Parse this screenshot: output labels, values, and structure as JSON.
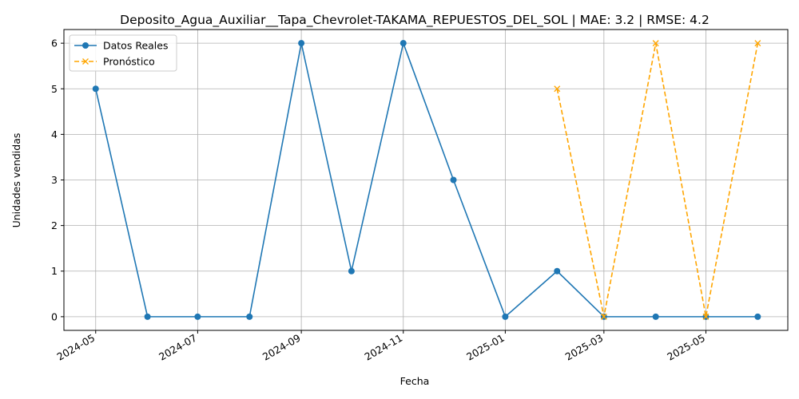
{
  "chart_data": {
    "type": "line",
    "title": "Deposito_Agua_Auxiliar__Tapa_Chevrolet-TAKAMA_REPUESTOS_DEL_SOL | MAE: 3.2 | RMSE: 4.2",
    "xlabel": "Fecha",
    "ylabel": "Unidades vendidas",
    "x_tick_labels": [
      "2024-05",
      "2024-07",
      "2024-09",
      "2024-11",
      "2025-01",
      "2025-03",
      "2025-05"
    ],
    "y_ticks": [
      0,
      1,
      2,
      3,
      4,
      5,
      6
    ],
    "ylim": [
      -0.3,
      6.3
    ],
    "xlim": [
      "2024-04-12",
      "2025-06-19"
    ],
    "grid": true,
    "legend_position": "top-left",
    "series": [
      {
        "name": "Datos Reales",
        "color": "#1f77b4",
        "marker": "circle",
        "linestyle": "solid",
        "x": [
          "2024-05-01",
          "2024-06-01",
          "2024-07-01",
          "2024-08-01",
          "2024-09-01",
          "2024-10-01",
          "2024-11-01",
          "2024-12-01",
          "2025-01-01",
          "2025-02-01",
          "2025-03-01",
          "2025-04-01",
          "2025-05-01",
          "2025-06-01"
        ],
        "values": [
          5,
          0,
          0,
          0,
          6,
          1,
          6,
          3,
          0,
          1,
          0,
          0,
          0,
          0
        ]
      },
      {
        "name": "Pronóstico",
        "color": "#ffa500",
        "marker": "x",
        "linestyle": "dashed",
        "x": [
          "2025-02-01",
          "2025-03-01",
          "2025-04-01",
          "2025-05-01",
          "2025-06-01"
        ],
        "values": [
          5,
          0,
          6,
          0,
          6
        ]
      }
    ]
  }
}
